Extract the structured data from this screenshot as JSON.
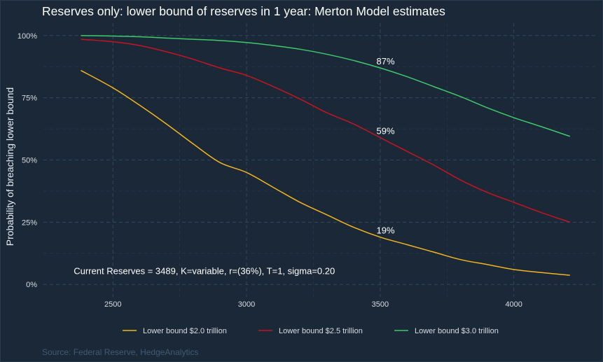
{
  "colors": {
    "background": "#1b2838",
    "grid": "#33475c",
    "text": "#e6ebf0",
    "tick": "#d7dde3",
    "source": "#3f5a75",
    "series_2_0": "#f2b51f",
    "series_2_5": "#c8141e",
    "series_3_0": "#3ec96a"
  },
  "chart_data": {
    "type": "line",
    "title": "Reserves only: lower bound of reserves in 1 year: Merton Model estimates",
    "xlabel": "",
    "ylabel": "Probability of breaching lower bound",
    "xlim": [
      2240,
      4310
    ],
    "ylim": [
      -0.05,
      1.05
    ],
    "x_ticks": [
      2500,
      3000,
      3500,
      4000
    ],
    "x_tick_labels": [
      "2500",
      "3000",
      "3500",
      "4000"
    ],
    "y_ticks": [
      0,
      0.25,
      0.5,
      0.75,
      1.0
    ],
    "y_tick_labels": [
      "0%",
      "25%",
      "50%",
      "75%",
      "100%"
    ],
    "grid": true,
    "legend_position": "bottom",
    "series": [
      {
        "name": "Lower bound $2.0 trillion",
        "color_key": "series_2_0",
        "x": [
          2380,
          2500,
          2600,
          2700,
          2800,
          2900,
          3000,
          3100,
          3200,
          3300,
          3400,
          3500,
          3600,
          3700,
          3800,
          3900,
          4000,
          4100,
          4210
        ],
        "y": [
          0.86,
          0.79,
          0.72,
          0.645,
          0.565,
          0.49,
          0.45,
          0.39,
          0.33,
          0.28,
          0.23,
          0.19,
          0.16,
          0.13,
          0.1,
          0.08,
          0.06,
          0.048,
          0.037
        ]
      },
      {
        "name": "Lower bound $2.5 trillion",
        "color_key": "series_2_5",
        "x": [
          2380,
          2500,
          2600,
          2700,
          2800,
          2900,
          3000,
          3100,
          3200,
          3300,
          3400,
          3500,
          3600,
          3700,
          3800,
          3900,
          4000,
          4100,
          4210
        ],
        "y": [
          0.985,
          0.975,
          0.96,
          0.935,
          0.905,
          0.87,
          0.84,
          0.795,
          0.745,
          0.69,
          0.645,
          0.59,
          0.535,
          0.48,
          0.42,
          0.37,
          0.33,
          0.29,
          0.25
        ]
      },
      {
        "name": "Lower bound $3.0 trillion",
        "color_key": "series_3_0",
        "x": [
          2380,
          2500,
          2600,
          2700,
          2800,
          2900,
          3000,
          3100,
          3200,
          3300,
          3400,
          3500,
          3600,
          3700,
          3800,
          3900,
          4000,
          4100,
          4210
        ],
        "y": [
          1.0,
          0.998,
          0.995,
          0.99,
          0.985,
          0.98,
          0.972,
          0.96,
          0.945,
          0.925,
          0.9,
          0.87,
          0.835,
          0.795,
          0.755,
          0.71,
          0.67,
          0.635,
          0.595
        ]
      }
    ],
    "point_labels": [
      {
        "x": 3520,
        "y": 0.87,
        "text": "87%"
      },
      {
        "x": 3520,
        "y": 0.59,
        "text": "59%"
      },
      {
        "x": 3520,
        "y": 0.19,
        "text": "19%"
      }
    ],
    "annotation": {
      "text": "Current Reserves = 3489, K=variable, r=(36%), T=1, sigma=0.20",
      "x": 2390,
      "y": 0.05
    },
    "source": "Source: Federal Reserve, HedgeAnalytics"
  }
}
